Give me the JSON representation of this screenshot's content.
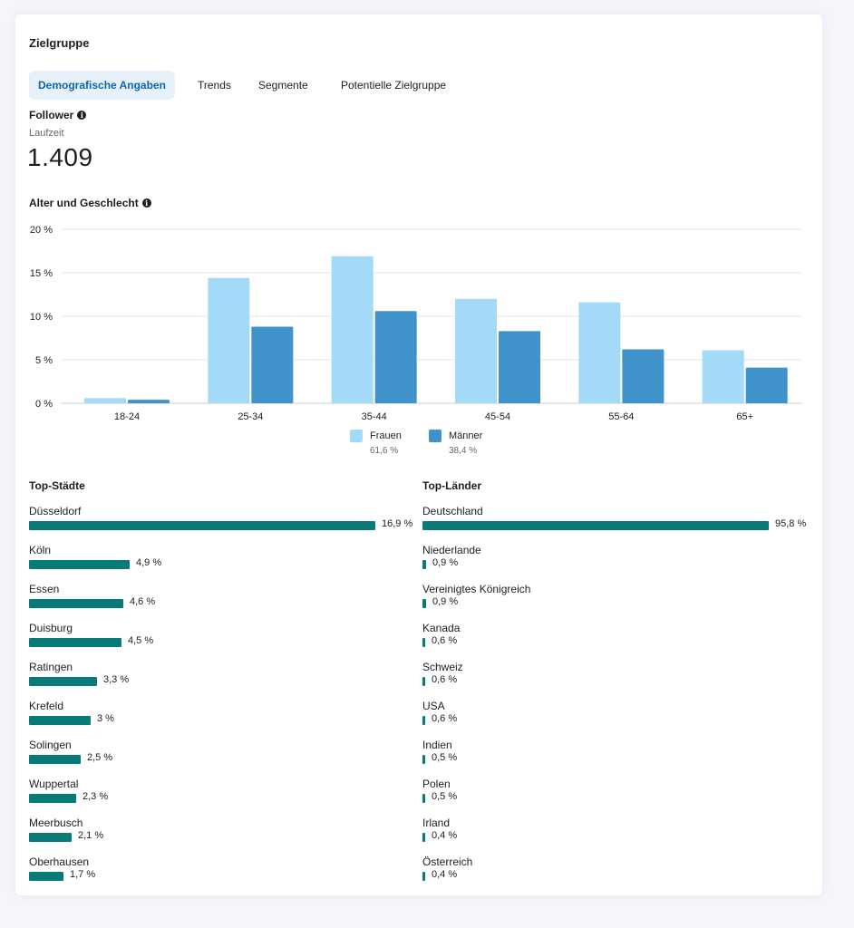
{
  "card": {
    "title": "Zielgruppe"
  },
  "tabs": [
    {
      "label": "Demografische Angaben",
      "active": true
    },
    {
      "label": "Trends",
      "active": false
    },
    {
      "label": "Segmente",
      "active": false
    },
    {
      "label": "Potentielle Zielgruppe",
      "active": false
    }
  ],
  "followers": {
    "label": "Follower",
    "sublabel": "Laufzeit",
    "value": "1.409"
  },
  "age_gender": {
    "label": "Alter und Geschlecht"
  },
  "colors": {
    "frauen": "#a3daf7",
    "maenner": "#3f92ca",
    "bar": "#087a78",
    "accent": "#0a66b0"
  },
  "legend": [
    {
      "name": "Frauen",
      "pct": "61,6 %"
    },
    {
      "name": "Männer",
      "pct": "38,4 %"
    }
  ],
  "chart_data": {
    "type": "bar",
    "categories": [
      "18-24",
      "25-34",
      "35-44",
      "45-54",
      "55-64",
      "65+"
    ],
    "series": [
      {
        "name": "Frauen",
        "values": [
          0.6,
          14.4,
          16.9,
          12.0,
          11.6,
          6.1
        ]
      },
      {
        "name": "Männer",
        "values": [
          0.4,
          8.8,
          10.6,
          8.3,
          6.2,
          4.1
        ]
      }
    ],
    "yticks": [
      "0 %",
      "5 %",
      "10 %",
      "15 %",
      "20 %"
    ],
    "ylim": [
      0,
      20
    ],
    "grid": true,
    "legend_position": "bottom"
  },
  "top_cities": {
    "title": "Top-Städte",
    "items": [
      {
        "name": "Düsseldorf",
        "value": 16.9,
        "pct": "16,9 %"
      },
      {
        "name": "Köln",
        "value": 4.9,
        "pct": "4,9 %"
      },
      {
        "name": "Essen",
        "value": 4.6,
        "pct": "4,6 %"
      },
      {
        "name": "Duisburg",
        "value": 4.5,
        "pct": "4,5 %"
      },
      {
        "name": "Ratingen",
        "value": 3.3,
        "pct": "3,3 %"
      },
      {
        "name": "Krefeld",
        "value": 3.0,
        "pct": "3 %"
      },
      {
        "name": "Solingen",
        "value": 2.5,
        "pct": "2,5 %"
      },
      {
        "name": "Wuppertal",
        "value": 2.3,
        "pct": "2,3 %"
      },
      {
        "name": "Meerbusch",
        "value": 2.1,
        "pct": "2,1 %"
      },
      {
        "name": "Oberhausen",
        "value": 1.7,
        "pct": "1,7 %"
      }
    ]
  },
  "top_countries": {
    "title": "Top-Länder",
    "items": [
      {
        "name": "Deutschland",
        "value": 95.8,
        "pct": "95,8 %"
      },
      {
        "name": "Niederlande",
        "value": 0.9,
        "pct": "0,9 %"
      },
      {
        "name": "Vereinigtes Königreich",
        "value": 0.9,
        "pct": "0,9 %"
      },
      {
        "name": "Kanada",
        "value": 0.6,
        "pct": "0,6 %"
      },
      {
        "name": "Schweiz",
        "value": 0.6,
        "pct": "0,6 %"
      },
      {
        "name": "USA",
        "value": 0.6,
        "pct": "0,6 %"
      },
      {
        "name": "Indien",
        "value": 0.5,
        "pct": "0,5 %"
      },
      {
        "name": "Polen",
        "value": 0.5,
        "pct": "0,5 %"
      },
      {
        "name": "Irland",
        "value": 0.4,
        "pct": "0,4 %"
      },
      {
        "name": "Österreich",
        "value": 0.4,
        "pct": "0,4 %"
      }
    ]
  }
}
